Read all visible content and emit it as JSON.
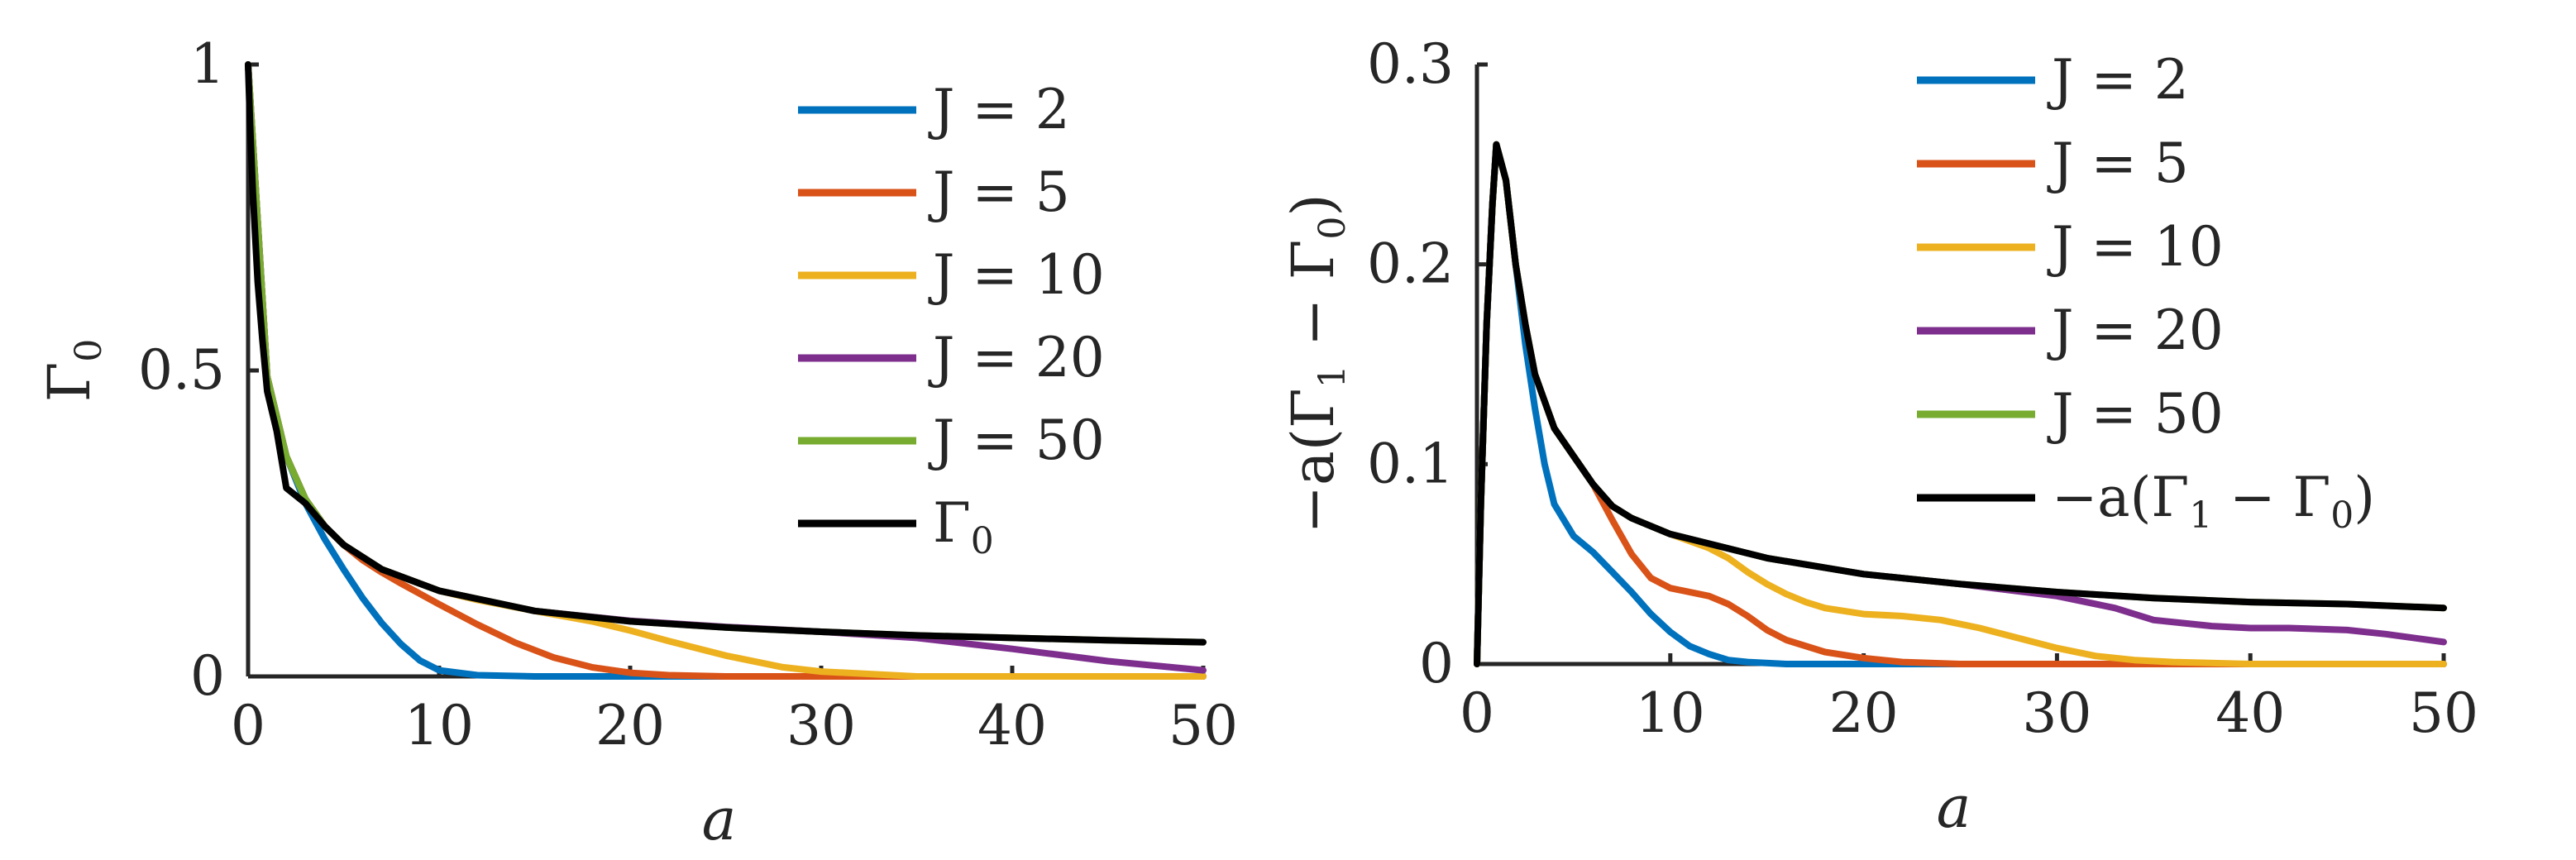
{
  "chart_data": [
    {
      "type": "line",
      "title": "",
      "xlabel": "a",
      "ylabel": "Γ_0",
      "xlim": [
        0,
        50
      ],
      "ylim": [
        0,
        1
      ],
      "xticks": [
        "0",
        "10",
        "20",
        "30",
        "40",
        "50"
      ],
      "yticks": [
        "0",
        "0.5",
        "1"
      ],
      "legend_placement": "top-right",
      "series": [
        {
          "name": "J = 2",
          "color": "#0072BD",
          "x": [
            0,
            1,
            2,
            3,
            4,
            5,
            6,
            7,
            8,
            9,
            10,
            12,
            15,
            20,
            30,
            50
          ],
          "y": [
            1.0,
            0.49,
            0.36,
            0.283,
            0.225,
            0.175,
            0.128,
            0.087,
            0.053,
            0.026,
            0.01,
            0.002,
            0,
            0,
            0,
            0
          ]
        },
        {
          "name": "J = 5",
          "color": "#D95319",
          "x": [
            0,
            1,
            2,
            3,
            4,
            5,
            6,
            7,
            8,
            10,
            12,
            14,
            16,
            18,
            20,
            22,
            25,
            30,
            50
          ],
          "y": [
            1.0,
            0.49,
            0.36,
            0.29,
            0.246,
            0.215,
            0.19,
            0.17,
            0.152,
            0.118,
            0.085,
            0.055,
            0.031,
            0.015,
            0.006,
            0.002,
            0,
            0,
            0
          ]
        },
        {
          "name": "J = 10",
          "color": "#EDB120",
          "x": [
            0,
            1,
            2,
            3,
            4,
            5,
            7,
            10,
            12,
            15,
            18,
            20,
            22,
            25,
            28,
            30,
            35,
            50
          ],
          "y": [
            1.0,
            0.49,
            0.36,
            0.29,
            0.246,
            0.215,
            0.175,
            0.14,
            0.125,
            0.107,
            0.09,
            0.075,
            0.058,
            0.034,
            0.015,
            0.008,
            0,
            0
          ]
        },
        {
          "name": "J = 20",
          "color": "#7E2F8E",
          "x": [
            0,
            1,
            2,
            3,
            4,
            5,
            7,
            10,
            15,
            20,
            25,
            30,
            35,
            40,
            45,
            50
          ],
          "y": [
            1.0,
            0.49,
            0.36,
            0.29,
            0.246,
            0.215,
            0.175,
            0.14,
            0.107,
            0.091,
            0.081,
            0.073,
            0.063,
            0.045,
            0.025,
            0.01
          ]
        },
        {
          "name": "J = 50",
          "color": "#77AC30",
          "x": [
            0,
            1,
            2,
            3,
            4,
            5,
            7,
            10,
            15,
            20,
            25,
            30,
            35,
            40,
            45,
            50
          ],
          "y": [
            1.0,
            0.49,
            0.36,
            0.29,
            0.246,
            0.215,
            0.175,
            0.14,
            0.107,
            0.09,
            0.08,
            0.073,
            0.067,
            0.063,
            0.059,
            0.056
          ]
        },
        {
          "name": "Γ_0",
          "color": "#000000",
          "x": [
            0,
            0.1,
            0.25,
            0.5,
            0.75,
            1,
            1.5,
            2,
            3,
            4,
            5,
            7,
            10,
            15,
            20,
            25,
            30,
            35,
            40,
            45,
            50
          ],
          "y": [
            1.0,
            0.905,
            0.79,
            0.645,
            0.55,
            0.466,
            0.401,
            0.308,
            0.283,
            0.246,
            0.215,
            0.175,
            0.14,
            0.107,
            0.09,
            0.08,
            0.073,
            0.067,
            0.063,
            0.059,
            0.056
          ]
        }
      ]
    },
    {
      "type": "line",
      "title": "",
      "xlabel": "a",
      "ylabel": "−a(Γ_1 − Γ_0)",
      "xlim": [
        0,
        50
      ],
      "ylim": [
        0,
        0.3
      ],
      "xticks": [
        "0",
        "10",
        "20",
        "30",
        "40",
        "50"
      ],
      "yticks": [
        "0",
        "0.1",
        "0.2",
        "0.3"
      ],
      "legend_placement": "top-right",
      "series": [
        {
          "name": "J = 2",
          "color": "#0072BD",
          "x": [
            0,
            0.2,
            0.5,
            0.8,
            1,
            1.5,
            2,
            2.5,
            3,
            3.5,
            4,
            5,
            6,
            7,
            8,
            9,
            10,
            11,
            12,
            13,
            14,
            16,
            20,
            30,
            50
          ],
          "y": [
            0,
            0.08,
            0.17,
            0.23,
            0.26,
            0.242,
            0.2,
            0.16,
            0.128,
            0.1,
            0.08,
            0.064,
            0.056,
            0.046,
            0.036,
            0.025,
            0.016,
            0.009,
            0.005,
            0.002,
            0.001,
            0,
            0,
            0,
            0
          ]
        },
        {
          "name": "J = 5",
          "color": "#D95319",
          "x": [
            0,
            0.2,
            0.5,
            0.8,
            1,
            1.5,
            2,
            2.5,
            3,
            4,
            5,
            6,
            7,
            8,
            9,
            10,
            12,
            13,
            14,
            15,
            16,
            18,
            20,
            22,
            25,
            30,
            50
          ],
          "y": [
            0,
            0.08,
            0.17,
            0.23,
            0.26,
            0.242,
            0.2,
            0.17,
            0.145,
            0.118,
            0.104,
            0.09,
            0.072,
            0.055,
            0.043,
            0.038,
            0.034,
            0.03,
            0.024,
            0.017,
            0.012,
            0.006,
            0.003,
            0.001,
            0,
            0,
            0
          ]
        },
        {
          "name": "J = 10",
          "color": "#EDB120",
          "x": [
            0,
            0.2,
            0.5,
            0.8,
            1,
            1.5,
            2,
            2.5,
            3,
            4,
            5,
            6,
            7,
            8,
            10,
            12,
            13,
            14,
            15,
            16,
            17,
            18,
            20,
            22,
            24,
            26,
            28,
            30,
            32,
            34,
            36,
            40,
            50
          ],
          "y": [
            0,
            0.08,
            0.17,
            0.23,
            0.26,
            0.242,
            0.2,
            0.17,
            0.145,
            0.118,
            0.104,
            0.09,
            0.079,
            0.073,
            0.065,
            0.058,
            0.053,
            0.046,
            0.04,
            0.035,
            0.031,
            0.028,
            0.025,
            0.024,
            0.022,
            0.018,
            0.013,
            0.008,
            0.004,
            0.002,
            0.001,
            0,
            0
          ]
        },
        {
          "name": "J = 20",
          "color": "#7E2F8E",
          "x": [
            0,
            0.2,
            0.5,
            0.8,
            1,
            1.5,
            2,
            2.5,
            3,
            4,
            5,
            6,
            7,
            8,
            10,
            15,
            20,
            25,
            30,
            33,
            35,
            38,
            40,
            42,
            45,
            47,
            50
          ],
          "y": [
            0,
            0.08,
            0.17,
            0.23,
            0.26,
            0.242,
            0.2,
            0.17,
            0.145,
            0.118,
            0.104,
            0.09,
            0.079,
            0.073,
            0.065,
            0.053,
            0.045,
            0.04,
            0.034,
            0.028,
            0.022,
            0.019,
            0.018,
            0.018,
            0.017,
            0.015,
            0.011
          ]
        },
        {
          "name": "J = 50",
          "color": "#77AC30",
          "x": [
            0,
            0.2,
            0.5,
            0.8,
            1,
            1.5,
            2,
            2.5,
            3,
            4,
            5,
            6,
            7,
            8,
            10,
            15,
            20,
            25,
            30,
            35,
            40,
            45,
            50
          ],
          "y": [
            0,
            0.08,
            0.17,
            0.23,
            0.26,
            0.242,
            0.2,
            0.17,
            0.145,
            0.118,
            0.104,
            0.09,
            0.079,
            0.073,
            0.065,
            0.053,
            0.045,
            0.04,
            0.036,
            0.033,
            0.031,
            0.03,
            0.028
          ]
        },
        {
          "name": "−a(Γ_1 − Γ_0)",
          "color": "#000000",
          "x": [
            0,
            0.2,
            0.5,
            0.8,
            1,
            1.5,
            2,
            2.5,
            3,
            4,
            5,
            6,
            7,
            8,
            10,
            15,
            20,
            25,
            30,
            35,
            40,
            45,
            50
          ],
          "y": [
            0,
            0.08,
            0.17,
            0.23,
            0.26,
            0.242,
            0.2,
            0.17,
            0.145,
            0.118,
            0.104,
            0.09,
            0.079,
            0.073,
            0.065,
            0.053,
            0.045,
            0.04,
            0.036,
            0.033,
            0.031,
            0.03,
            0.028
          ]
        }
      ]
    }
  ]
}
